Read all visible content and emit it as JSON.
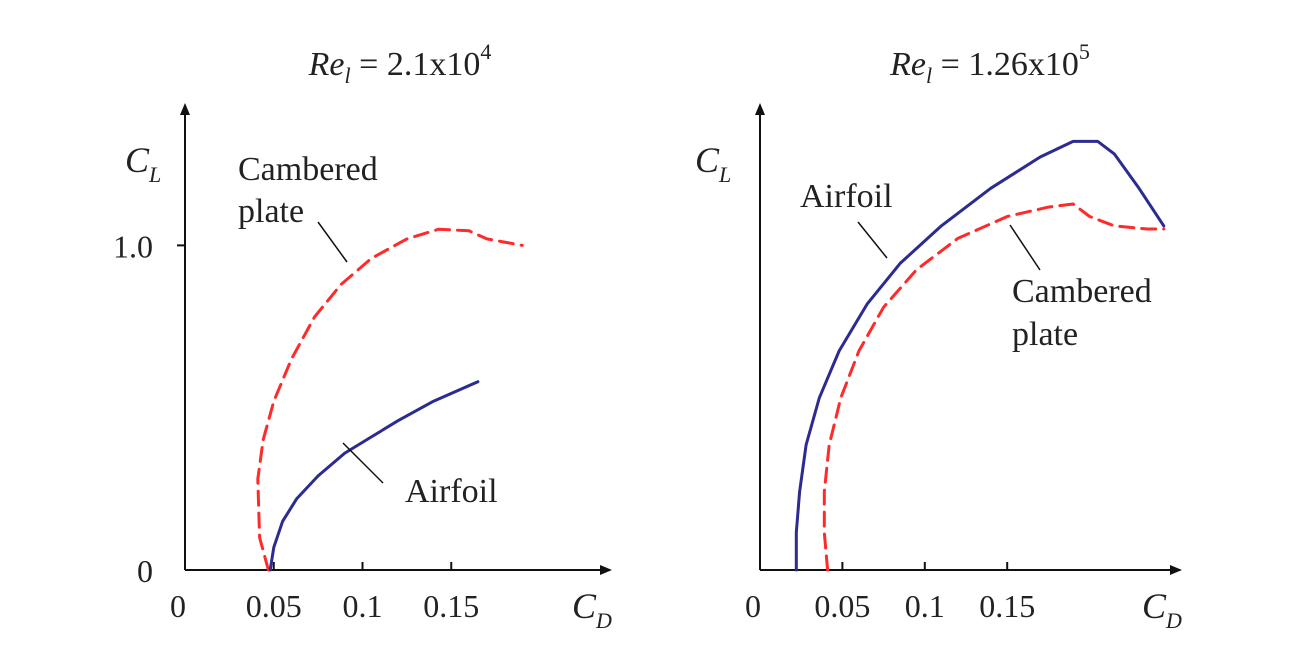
{
  "chart_data": [
    {
      "type": "line",
      "title": {
        "prefix": "Re",
        "sub": "l",
        "equals": " = ",
        "mantissa": "2.1x10",
        "exponent": "4"
      },
      "xlabel": {
        "main": "C",
        "sub": "D"
      },
      "ylabel": {
        "main": "C",
        "sub": "L"
      },
      "xlim": [
        0,
        0.2
      ],
      "ylim": [
        0,
        1.3
      ],
      "x_ticks": [
        {
          "value": 0,
          "label": "0"
        },
        {
          "value": 0.05,
          "label": "0.05"
        },
        {
          "value": 0.1,
          "label": "0.1"
        },
        {
          "value": 0.15,
          "label": "0.15"
        }
      ],
      "y_ticks": [
        {
          "value": 0,
          "label": "0"
        },
        {
          "value": 1.0,
          "label": "1.0"
        }
      ],
      "annotations": [
        "Cambered",
        "plate",
        "Airfoil"
      ],
      "series": [
        {
          "name": "Cambered plate",
          "style": "dashed",
          "color": "#ff2a2a",
          "points": [
            [
              0.047,
              0.0
            ],
            [
              0.042,
              0.1
            ],
            [
              0.041,
              0.28
            ],
            [
              0.044,
              0.4
            ],
            [
              0.05,
              0.52
            ],
            [
              0.06,
              0.65
            ],
            [
              0.073,
              0.78
            ],
            [
              0.088,
              0.88
            ],
            [
              0.105,
              0.96
            ],
            [
              0.125,
              1.02
            ],
            [
              0.143,
              1.05
            ],
            [
              0.16,
              1.045
            ],
            [
              0.17,
              1.02
            ],
            [
              0.18,
              1.01
            ],
            [
              0.19,
              1.0
            ]
          ]
        },
        {
          "name": "Airfoil",
          "style": "solid",
          "color": "#2b2b90",
          "points": [
            [
              0.048,
              0.0
            ],
            [
              0.05,
              0.07
            ],
            [
              0.055,
              0.15
            ],
            [
              0.063,
              0.22
            ],
            [
              0.075,
              0.29
            ],
            [
              0.09,
              0.36
            ],
            [
              0.105,
              0.41
            ],
            [
              0.12,
              0.46
            ],
            [
              0.14,
              0.52
            ],
            [
              0.165,
              0.58
            ]
          ]
        }
      ]
    },
    {
      "type": "line",
      "title": {
        "prefix": "Re",
        "sub": "l",
        "equals": " = ",
        "mantissa": "1.26x10",
        "exponent": "5"
      },
      "xlabel": {
        "main": "C",
        "sub": "D"
      },
      "ylabel": {
        "main": "C",
        "sub": "L"
      },
      "xlim": [
        0,
        0.25
      ],
      "ylim": [
        0,
        1.4
      ],
      "x_ticks": [
        {
          "value": 0,
          "label": "0"
        },
        {
          "value": 0.05,
          "label": "0.05"
        },
        {
          "value": 0.1,
          "label": "0.1"
        },
        {
          "value": 0.15,
          "label": "0.15"
        }
      ],
      "y_ticks": [],
      "annotations": [
        "Airfoil",
        "Cambered",
        "plate"
      ],
      "series": [
        {
          "name": "Airfoil",
          "style": "solid",
          "color": "#2b2b90",
          "points": [
            [
              0.022,
              0.0
            ],
            [
              0.022,
              0.12
            ],
            [
              0.024,
              0.25
            ],
            [
              0.028,
              0.4
            ],
            [
              0.036,
              0.55
            ],
            [
              0.048,
              0.7
            ],
            [
              0.065,
              0.85
            ],
            [
              0.085,
              0.98
            ],
            [
              0.11,
              1.1
            ],
            [
              0.14,
              1.22
            ],
            [
              0.17,
              1.32
            ],
            [
              0.19,
              1.37
            ],
            [
              0.205,
              1.37
            ],
            [
              0.215,
              1.33
            ],
            [
              0.23,
              1.22
            ],
            [
              0.245,
              1.1
            ]
          ]
        },
        {
          "name": "Cambered plate",
          "style": "dashed",
          "color": "#ff2a2a",
          "points": [
            [
              0.041,
              0.0
            ],
            [
              0.039,
              0.12
            ],
            [
              0.039,
              0.25
            ],
            [
              0.042,
              0.4
            ],
            [
              0.049,
              0.55
            ],
            [
              0.06,
              0.7
            ],
            [
              0.075,
              0.84
            ],
            [
              0.095,
              0.96
            ],
            [
              0.12,
              1.06
            ],
            [
              0.15,
              1.13
            ],
            [
              0.175,
              1.16
            ],
            [
              0.19,
              1.17
            ],
            [
              0.2,
              1.13
            ],
            [
              0.215,
              1.1
            ],
            [
              0.235,
              1.09
            ],
            [
              0.245,
              1.09
            ]
          ]
        }
      ]
    }
  ]
}
